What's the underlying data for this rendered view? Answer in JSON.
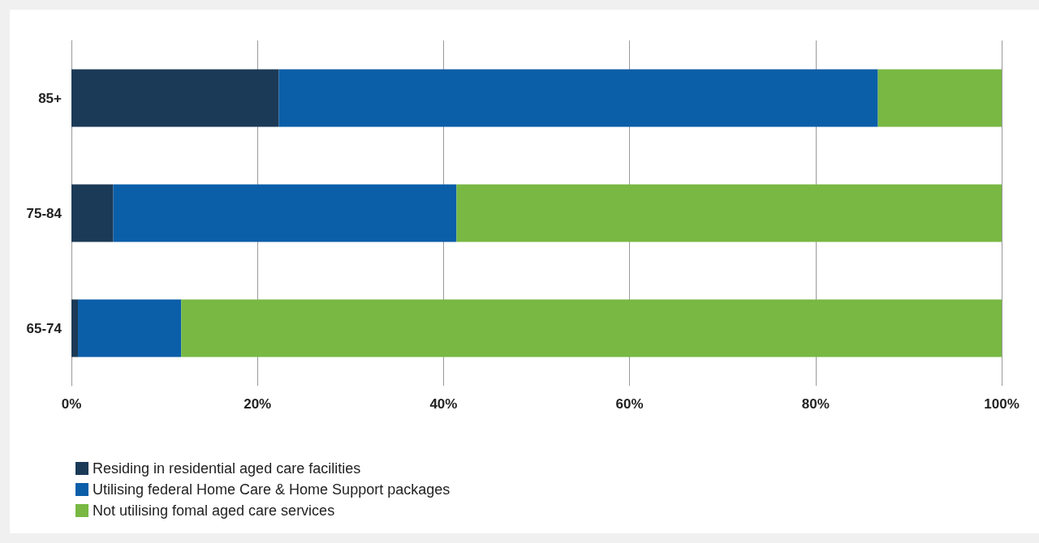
{
  "chart_data": {
    "type": "bar",
    "orientation": "horizontal",
    "stacked": true,
    "categories": [
      "85+",
      "75-84",
      "65-74"
    ],
    "series": [
      {
        "name": "Residing in residential aged care facilities",
        "color": "#1b3a57",
        "values": [
          22.3,
          4.5,
          0.7
        ]
      },
      {
        "name": "Utilising federal Home Care & Home Support packages",
        "color": "#0b5ea8",
        "values": [
          64.4,
          36.9,
          11.1
        ]
      },
      {
        "name": "Not utilising fomal aged care services",
        "color": "#78b843",
        "values": [
          13.3,
          58.6,
          88.2
        ]
      }
    ],
    "xlim": [
      0,
      100
    ],
    "xticks": [
      {
        "value": 0,
        "label": "0%"
      },
      {
        "value": 20,
        "label": "20%"
      },
      {
        "value": 40,
        "label": "40%"
      },
      {
        "value": 60,
        "label": "60%"
      },
      {
        "value": 80,
        "label": "80%"
      },
      {
        "value": 100,
        "label": "100%"
      }
    ],
    "grid": "x",
    "legend": "bottom left"
  }
}
